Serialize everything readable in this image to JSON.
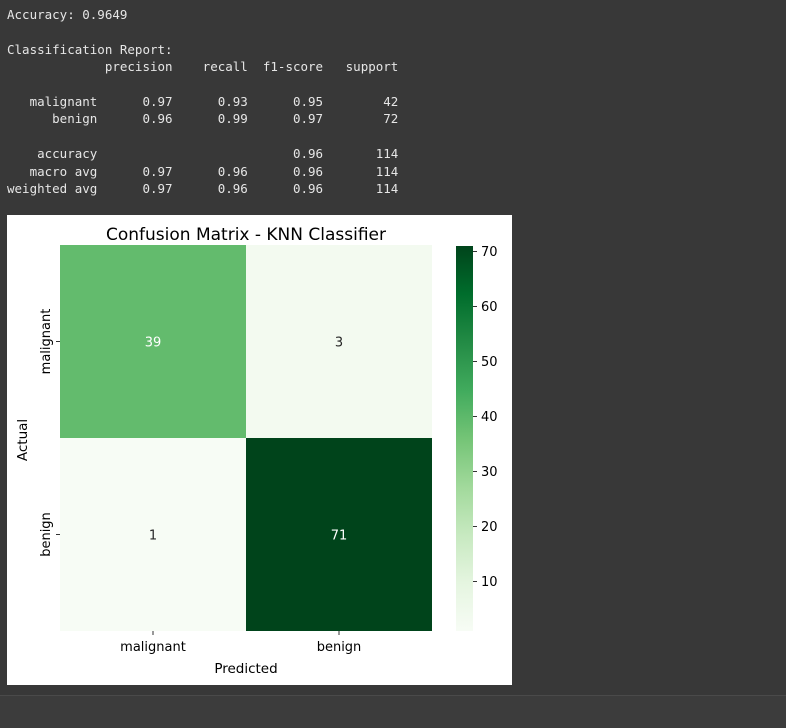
{
  "output": {
    "accuracy_line": "Accuracy: 0.9649",
    "report_title": "Classification Report:",
    "report_header": [
      "precision",
      "recall",
      "f1-score",
      "support"
    ],
    "report_rows": [
      {
        "label": "malignant",
        "precision": "0.97",
        "recall": "0.93",
        "f1": "0.95",
        "support": "42"
      },
      {
        "label": "benign",
        "precision": "0.96",
        "recall": "0.99",
        "f1": "0.97",
        "support": "72"
      },
      {
        "label": "",
        "precision": "",
        "recall": "",
        "f1": "",
        "support": ""
      },
      {
        "label": "accuracy",
        "precision": "",
        "recall": "",
        "f1": "0.96",
        "support": "114"
      },
      {
        "label": "macro avg",
        "precision": "0.97",
        "recall": "0.96",
        "f1": "0.96",
        "support": "114"
      },
      {
        "label": "weighted avg",
        "precision": "0.97",
        "recall": "0.96",
        "f1": "0.96",
        "support": "114"
      }
    ]
  },
  "chart_data": {
    "type": "heatmap",
    "title": "Confusion Matrix - KNN Classifier",
    "xlabel": "Predicted",
    "ylabel": "Actual",
    "x_categories": [
      "malignant",
      "benign"
    ],
    "y_categories": [
      "malignant",
      "benign"
    ],
    "values": [
      [
        39,
        3
      ],
      [
        1,
        71
      ]
    ],
    "colormap": "Greens",
    "colorbar_range": [
      1,
      71
    ],
    "colorbar_ticks": [
      10,
      20,
      30,
      40,
      50,
      60,
      70
    ],
    "colors": {
      "low": "#f7fcf5",
      "high": "#00441b"
    }
  }
}
